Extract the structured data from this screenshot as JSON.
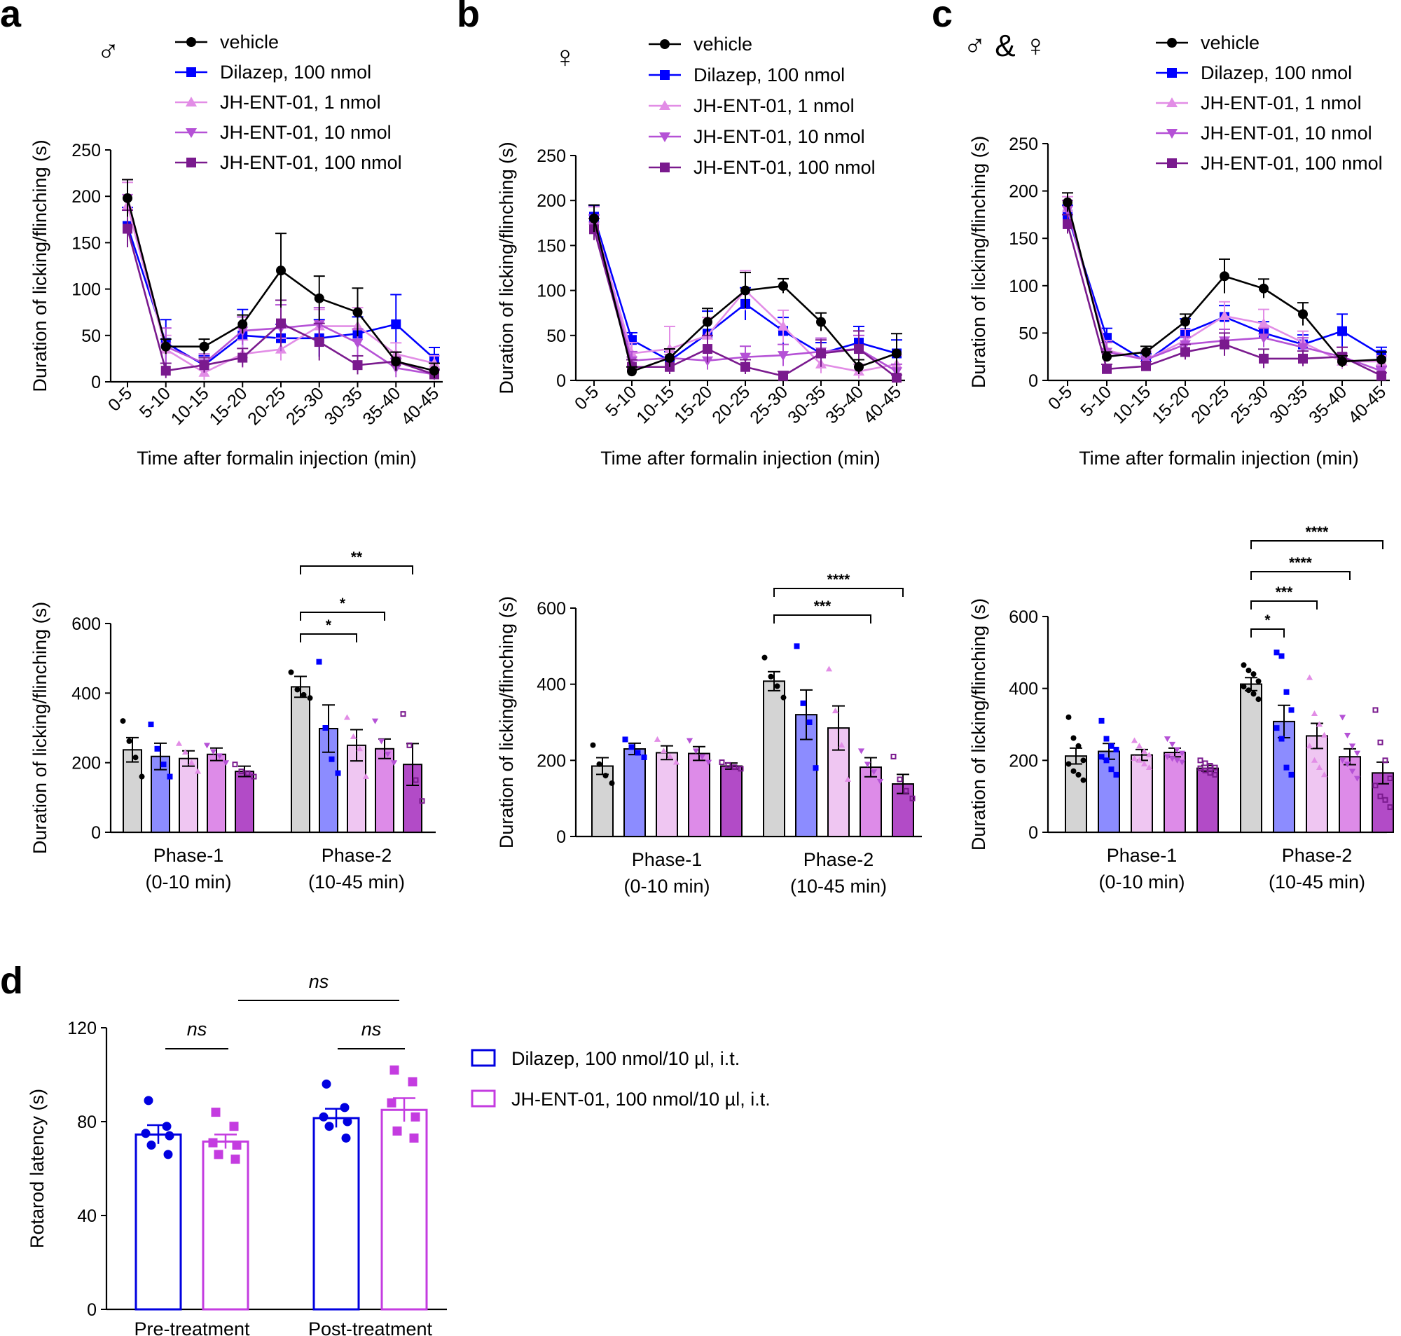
{
  "panel_labels": {
    "a": "a",
    "b": "b",
    "c": "c",
    "d": "d"
  },
  "sex_symbols": {
    "a": "♂",
    "b": "♀",
    "c": "♂ & ♀"
  },
  "colors": {
    "vehicle": "#000000",
    "dilazep": "#0000ff",
    "jh1": "#e28de6",
    "jh10": "#b551d6",
    "jh100": "#7a1a8e",
    "bar_vehicle": "#d4d4d4",
    "bar_dilazep": "#8c8cff",
    "bar_jh1": "#efc6f2",
    "bar_jh10": "#dd8be8",
    "bar_jh100": "#b24bc7",
    "d_dilazep": "#0000e0",
    "d_jh": "#c43ce0"
  },
  "legend": [
    "vehicle",
    "Dilazep, 100 nmol",
    "JH-ENT-01, 1 nmol",
    "JH-ENT-01, 10 nmol",
    "JH-ENT-01, 100 nmol"
  ],
  "legend_d": [
    "Dilazep, 100 nmol/10 µl, i.t.",
    "JH-ENT-01, 100 nmol/10 µl, i.t."
  ],
  "chart_data": [
    {
      "id": "a_time",
      "type": "line",
      "xlabel": "Time after formalin injection (min)",
      "ylabel": "Duration of licking/flinching (s)",
      "ylim": [
        0,
        250
      ],
      "yticks": [
        0,
        50,
        100,
        150,
        200,
        250
      ],
      "categories": [
        "0-5",
        "5-10",
        "10-15",
        "15-20",
        "20-25",
        "25-30",
        "30-35",
        "35-40",
        "40-45"
      ],
      "series": [
        {
          "name": "vehicle",
          "values": [
            198,
            38,
            38,
            62,
            120,
            90,
            75,
            22,
            12
          ],
          "err": [
            20,
            8,
            8,
            10,
            40,
            24,
            26,
            10,
            8
          ]
        },
        {
          "name": "Dilazep, 100 nmol",
          "values": [
            168,
            42,
            18,
            50,
            47,
            47,
            52,
            62,
            25
          ],
          "err": [
            20,
            25,
            10,
            28,
            15,
            20,
            18,
            32,
            12
          ]
        },
        {
          "name": "JH-ENT-01, 1 nmol",
          "values": [
            190,
            35,
            10,
            30,
            35,
            60,
            60,
            30,
            20
          ],
          "err": [
            25,
            15,
            8,
            15,
            12,
            18,
            20,
            12,
            8
          ]
        },
        {
          "name": "JH-ENT-01, 10 nmol",
          "values": [
            198,
            38,
            20,
            55,
            58,
            62,
            42,
            15,
            8
          ],
          "err": [
            20,
            20,
            10,
            15,
            25,
            18,
            15,
            10,
            6
          ]
        },
        {
          "name": "JH-ENT-01, 100 nmol",
          "values": [
            165,
            12,
            18,
            26,
            63,
            43,
            18,
            22,
            8
          ],
          "err": [
            20,
            8,
            8,
            10,
            25,
            20,
            10,
            10,
            5
          ]
        }
      ]
    },
    {
      "id": "a_phase",
      "type": "bar",
      "ylabel": "Duration of licking/flinching (s)",
      "ylim": [
        0,
        600
      ],
      "yticks": [
        0,
        200,
        400,
        600
      ],
      "groups": [
        [
          "Phase-1",
          "(0-10 min)"
        ],
        [
          "Phase-2",
          "(10-45 min)"
        ]
      ],
      "series": [
        {
          "name": "vehicle",
          "means": [
            237,
            418
          ],
          "err": [
            35,
            30
          ],
          "points": [
            [
              320,
              262,
              215,
              160
            ],
            [
              460,
              410,
              395,
              386
            ]
          ]
        },
        {
          "name": "Dilazep, 100 nmol",
          "means": [
            218,
            298
          ],
          "err": [
            38,
            68
          ],
          "points": [
            [
              310,
              240,
              195,
              160
            ],
            [
              490,
              300,
              210,
              170
            ]
          ]
        },
        {
          "name": "JH-ENT-01, 1 nmol",
          "means": [
            212,
            250
          ],
          "err": [
            22,
            45
          ],
          "points": [
            [
              255,
              230,
              200,
              175
            ],
            [
              330,
              275,
              240,
              160
            ]
          ]
        },
        {
          "name": "JH-ENT-01, 10 nmol",
          "means": [
            224,
            240
          ],
          "err": [
            18,
            28
          ],
          "points": [
            [
              250,
              232,
              220,
              200
            ],
            [
              320,
              262,
              225,
              200
            ]
          ]
        },
        {
          "name": "JH-ENT-01, 100 nmol",
          "means": [
            175,
            195
          ],
          "err": [
            15,
            60
          ],
          "points": [
            [
              195,
              175,
              170,
              160
            ],
            [
              340,
              250,
              150,
              90
            ]
          ]
        }
      ],
      "significance": [
        {
          "from": 0,
          "to": 2,
          "label": "*"
        },
        {
          "from": 0,
          "to": 3,
          "label": "*"
        },
        {
          "from": 0,
          "to": 4,
          "label": "**"
        }
      ]
    },
    {
      "id": "b_time",
      "type": "line",
      "xlabel": "Time after formalin injection (min)",
      "ylabel": "Duration of licking/flinching (s)",
      "ylim": [
        0,
        250
      ],
      "yticks": [
        0,
        50,
        100,
        150,
        200,
        250
      ],
      "categories": [
        "0-5",
        "5-10",
        "10-15",
        "15-20",
        "20-25",
        "25-30",
        "30-35",
        "35-40",
        "40-45"
      ],
      "series": [
        {
          "name": "vehicle",
          "values": [
            180,
            10,
            25,
            65,
            100,
            105,
            65,
            15,
            30
          ],
          "err": [
            15,
            5,
            10,
            15,
            20,
            8,
            10,
            8,
            22
          ]
        },
        {
          "name": "Dilazep, 100 nmol",
          "values": [
            182,
            45,
            22,
            52,
            85,
            55,
            30,
            42,
            30
          ],
          "err": [
            12,
            8,
            10,
            25,
            18,
            15,
            12,
            18,
            15
          ]
        },
        {
          "name": "JH-ENT-01, 1 nmol",
          "values": [
            178,
            30,
            35,
            50,
            100,
            60,
            18,
            10,
            18
          ],
          "err": [
            15,
            12,
            25,
            20,
            22,
            18,
            10,
            8,
            10
          ]
        },
        {
          "name": "JH-ENT-01, 10 nmol",
          "values": [
            172,
            22,
            25,
            22,
            26,
            28,
            32,
            35,
            10
          ],
          "err": [
            12,
            10,
            10,
            10,
            12,
            12,
            15,
            15,
            8
          ]
        },
        {
          "name": "JH-ENT-01, 100 nmol",
          "values": [
            168,
            15,
            15,
            35,
            15,
            5,
            30,
            35,
            3
          ],
          "err": [
            12,
            8,
            8,
            15,
            8,
            5,
            15,
            20,
            3
          ]
        }
      ]
    },
    {
      "id": "b_phase",
      "type": "bar",
      "ylabel": "Duration of licking/flinching (s)",
      "ylim": [
        0,
        600
      ],
      "yticks": [
        0,
        200,
        400,
        600
      ],
      "groups": [
        [
          "Phase-1",
          "(0-10 min)"
        ],
        [
          "Phase-2",
          "(10-45 min)"
        ]
      ],
      "series": [
        {
          "name": "vehicle",
          "means": [
            185,
            408
          ],
          "err": [
            22,
            25
          ],
          "points": [
            [
              240,
              190,
              160,
              140
            ],
            [
              470,
              420,
              395,
              365
            ]
          ]
        },
        {
          "name": "Dilazep, 100 nmol",
          "means": [
            230,
            320
          ],
          "err": [
            15,
            65
          ],
          "points": [
            [
              255,
              235,
              220,
              208
            ],
            [
              500,
              350,
              300,
              180
            ]
          ]
        },
        {
          "name": "JH-ENT-01, 1 nmol",
          "means": [
            220,
            285
          ],
          "err": [
            18,
            58
          ],
          "points": [
            [
              255,
              225,
              210,
              195
            ],
            [
              440,
              330,
              240,
              150
            ]
          ]
        },
        {
          "name": "JH-ENT-01, 10 nmol",
          "means": [
            218,
            182
          ],
          "err": [
            18,
            25
          ],
          "points": [
            [
              252,
              225,
              210,
              195
            ],
            [
              225,
              190,
              170,
              145
            ]
          ]
        },
        {
          "name": "JH-ENT-01, 100 nmol",
          "means": [
            185,
            138
          ],
          "err": [
            8,
            25
          ],
          "points": [
            [
              195,
              188,
              182,
              178
            ],
            [
              210,
              150,
              120,
              100
            ]
          ]
        }
      ],
      "significance": [
        {
          "from": 0,
          "to": 3,
          "label": "***"
        },
        {
          "from": 0,
          "to": 4,
          "label": "****"
        }
      ]
    },
    {
      "id": "c_time",
      "type": "line",
      "xlabel": "Time after formalin injection (min)",
      "ylabel": "Duration of licking/flinching (s)",
      "ylim": [
        0,
        250
      ],
      "yticks": [
        0,
        50,
        100,
        150,
        200,
        250
      ],
      "categories": [
        "0-5",
        "5-10",
        "10-15",
        "15-20",
        "20-25",
        "25-30",
        "30-35",
        "35-40",
        "40-45"
      ],
      "series": [
        {
          "name": "vehicle",
          "values": [
            188,
            25,
            30,
            62,
            110,
            97,
            70,
            20,
            22
          ],
          "err": [
            10,
            5,
            6,
            8,
            18,
            10,
            12,
            6,
            8
          ]
        },
        {
          "name": "Dilazep, 100 nmol",
          "values": [
            175,
            45,
            20,
            50,
            67,
            50,
            38,
            52,
            27
          ],
          "err": [
            10,
            10,
            8,
            15,
            12,
            12,
            10,
            18,
            8
          ]
        },
        {
          "name": "JH-ENT-01, 1 nmol",
          "values": [
            182,
            32,
            22,
            42,
            68,
            60,
            40,
            20,
            20
          ],
          "err": [
            12,
            10,
            10,
            12,
            15,
            15,
            12,
            8,
            6
          ]
        },
        {
          "name": "JH-ENT-01, 10 nmol",
          "values": [
            180,
            30,
            22,
            38,
            42,
            45,
            35,
            25,
            10
          ],
          "err": [
            10,
            10,
            8,
            8,
            12,
            10,
            10,
            10,
            5
          ]
        },
        {
          "name": "JH-ENT-01, 100 nmol",
          "values": [
            165,
            12,
            15,
            30,
            38,
            23,
            23,
            25,
            5
          ],
          "err": [
            10,
            5,
            5,
            8,
            12,
            10,
            8,
            10,
            3
          ]
        }
      ]
    },
    {
      "id": "c_phase",
      "type": "bar",
      "ylabel": "Duration of licking/flinching (s)",
      "ylim": [
        0,
        600
      ],
      "yticks": [
        0,
        200,
        400,
        600
      ],
      "groups": [
        [
          "Phase-1",
          "(0-10 min)"
        ],
        [
          "Phase-2",
          "(10-45 min)"
        ]
      ],
      "series": [
        {
          "name": "vehicle",
          "means": [
            212,
            412
          ],
          "err": [
            22,
            18
          ],
          "points": [
            [
              320,
              262,
              240,
              200,
              190,
              170,
              160,
              145
            ],
            [
              465,
              450,
              440,
              420,
              405,
              395,
              385,
              370
            ]
          ]
        },
        {
          "name": "Dilazep, 100 nmol",
          "means": [
            225,
            308
          ],
          "err": [
            22,
            45
          ],
          "points": [
            [
              310,
              260,
              240,
              230,
              210,
              200,
              175,
              160
            ],
            [
              500,
              490,
              390,
              340,
              290,
              260,
              180,
              160
            ]
          ]
        },
        {
          "name": "JH-ENT-01, 1 nmol",
          "means": [
            215,
            268
          ],
          "err": [
            15,
            35
          ],
          "points": [
            [
              255,
              240,
              225,
              215,
              205,
              200,
              190,
              180
            ],
            [
              430,
              330,
              300,
              270,
              240,
              200,
              180,
              160
            ]
          ]
        },
        {
          "name": "JH-ENT-01, 10 nmol",
          "means": [
            222,
            210
          ],
          "err": [
            12,
            22
          ],
          "points": [
            [
              260,
              245,
              230,
              220,
              210,
              205,
              200,
              195
            ],
            [
              320,
              270,
              240,
              220,
              200,
              190,
              170,
              150
            ]
          ]
        },
        {
          "name": "JH-ENT-01, 100 nmol",
          "means": [
            178,
            165
          ],
          "err": [
            8,
            30
          ],
          "points": [
            [
              200,
              192,
              185,
              180,
              178,
              172,
              165,
              160
            ],
            [
              340,
              250,
              200,
              150,
              130,
              100,
              90,
              70
            ]
          ]
        }
      ],
      "significance": [
        {
          "from": 0,
          "to": 1,
          "label": "*"
        },
        {
          "from": 0,
          "to": 2,
          "label": "***"
        },
        {
          "from": 0,
          "to": 3,
          "label": "****"
        },
        {
          "from": 0,
          "to": 4,
          "label": "****"
        }
      ]
    },
    {
      "id": "d_rotarod",
      "type": "bar",
      "ylabel": "Rotarod latency (s)",
      "ylim": [
        0,
        120
      ],
      "yticks": [
        0,
        40,
        80,
        120
      ],
      "categories": [
        "Pre-treatment",
        "Post-treatment"
      ],
      "series": [
        {
          "name": "Dilazep, 100 nmol/10 µl, i.t.",
          "means": [
            74.5,
            81.5
          ],
          "err": [
            4,
            4
          ],
          "points": [
            [
              89,
              78,
              75,
              74,
              70,
              66
            ],
            [
              96,
              86,
              82,
              80,
              78,
              73
            ]
          ]
        },
        {
          "name": "JH-ENT-01, 100 nmol/10 µl, i.t.",
          "means": [
            71.5,
            85
          ],
          "err": [
            3,
            5
          ],
          "points": [
            [
              84,
              78,
              71,
              70,
              66,
              64
            ],
            [
              102,
              97,
              88,
              82,
              76,
              73
            ]
          ]
        }
      ],
      "significance": [
        {
          "label": "ns",
          "between": "Dilazep vs JH-ENT-01, Pre-treatment"
        },
        {
          "label": "ns",
          "between": "Dilazep vs JH-ENT-01, Post-treatment"
        },
        {
          "label": "ns",
          "between": "Pre-treatment vs Post-treatment"
        }
      ]
    }
  ]
}
